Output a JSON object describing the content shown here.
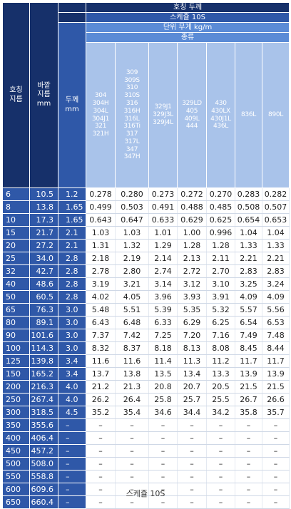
{
  "header": {
    "nominal_size_label": "호칭\n지름",
    "outer_dia_label": "바깥\n지름\nmm",
    "wall_thickness_label": "두께\nmm",
    "title_nominal_thickness": "호칭 두께",
    "schedule": "스케쥴 10S",
    "unit_weight": "단위 무게 kg/m",
    "grade_group": "종류",
    "grades": [
      "304\n304H\n304L\n304J1\n321\n321H",
      "309\n309S\n310\n310S\n316\n316H\n316L\n316Ti\n317\n317L\n347\n347H",
      "329J1\n329J3L\n329J4L",
      "329LD\n405\n409L\n444",
      "430\n430LX\n430J1L\n436L",
      "836L",
      "890L"
    ]
  },
  "rows": [
    {
      "nom": "6",
      "od": "10.5",
      "wt": "1.2",
      "w": [
        "0.278",
        "0.280",
        "0.273",
        "0.272",
        "0.270",
        "0.283",
        "0.282"
      ]
    },
    {
      "nom": "8",
      "od": "13.8",
      "wt": "1.65",
      "w": [
        "0.499",
        "0.503",
        "0.491",
        "0.488",
        "0.485",
        "0.508",
        "0.507"
      ]
    },
    {
      "nom": "10",
      "od": "17.3",
      "wt": "1.65",
      "w": [
        "0.643",
        "0.647",
        "0.633",
        "0.629",
        "0.625",
        "0.654",
        "0.653"
      ]
    },
    {
      "nom": "15",
      "od": "21.7",
      "wt": "2.1",
      "w": [
        "1.03",
        "1.03",
        "1.01",
        "1.00",
        "0.996",
        "1.04",
        "1.04"
      ]
    },
    {
      "nom": "20",
      "od": "27.2",
      "wt": "2.1",
      "w": [
        "1.31",
        "1.32",
        "1.29",
        "1.28",
        "1.28",
        "1.33",
        "1.33"
      ]
    },
    {
      "nom": "25",
      "od": "34.0",
      "wt": "2.8",
      "w": [
        "2.18",
        "2.19",
        "2.14",
        "2.13",
        "2.11",
        "2.21",
        "2.21"
      ]
    },
    {
      "nom": "32",
      "od": "42.7",
      "wt": "2.8",
      "w": [
        "2.78",
        "2.80",
        "2.74",
        "2.72",
        "2.70",
        "2.83",
        "2.83"
      ]
    },
    {
      "nom": "40",
      "od": "48.6",
      "wt": "2.8",
      "w": [
        "3.19",
        "3.21",
        "3.14",
        "3.12",
        "3.10",
        "3.25",
        "3.24"
      ]
    },
    {
      "nom": "50",
      "od": "60.5",
      "wt": "2.8",
      "w": [
        "4.02",
        "4.05",
        "3.96",
        "3.93",
        "3.91",
        "4.09",
        "4.09"
      ]
    },
    {
      "nom": "65",
      "od": "76.3",
      "wt": "3.0",
      "w": [
        "5.48",
        "5.51",
        "5.39",
        "5.35",
        "5.32",
        "5.57",
        "5.56"
      ]
    },
    {
      "nom": "80",
      "od": "89.1",
      "wt": "3.0",
      "w": [
        "6.43",
        "6.48",
        "6.33",
        "6.29",
        "6.25",
        "6.54",
        "6.53"
      ]
    },
    {
      "nom": "90",
      "od": "101.6",
      "wt": "3.0",
      "w": [
        "7.37",
        "7.42",
        "7.25",
        "7.20",
        "7.16",
        "7.49",
        "7.48"
      ]
    },
    {
      "nom": "100",
      "od": "114.3",
      "wt": "3.0",
      "w": [
        "8.32",
        "8.37",
        "8.18",
        "8.13",
        "8.08",
        "8.45",
        "8.44"
      ]
    },
    {
      "nom": "125",
      "od": "139.8",
      "wt": "3.4",
      "w": [
        "11.6",
        "11.6",
        "11.4",
        "11.3",
        "11.2",
        "11.7",
        "11.7"
      ]
    },
    {
      "nom": "150",
      "od": "165.2",
      "wt": "3.4",
      "w": [
        "13.7",
        "13.8",
        "13.5",
        "13.4",
        "13.3",
        "13.9",
        "13.9"
      ]
    },
    {
      "nom": "200",
      "od": "216.3",
      "wt": "4.0",
      "w": [
        "21.2",
        "21.3",
        "20.8",
        "20.7",
        "20.5",
        "21.5",
        "21.5"
      ]
    },
    {
      "nom": "250",
      "od": "267.4",
      "wt": "4.0",
      "w": [
        "26.2",
        "26.4",
        "25.8",
        "25.7",
        "25.5",
        "26.7",
        "26.6"
      ]
    },
    {
      "nom": "300",
      "od": "318.5",
      "wt": "4.5",
      "w": [
        "35.2",
        "35.4",
        "34.6",
        "34.4",
        "34.2",
        "35.8",
        "35.7"
      ]
    },
    {
      "nom": "350",
      "od": "355.6",
      "wt": "–",
      "w": [
        "–",
        "–",
        "–",
        "–",
        "–",
        "–",
        "–"
      ]
    },
    {
      "nom": "400",
      "od": "406.4",
      "wt": "–",
      "w": [
        "–",
        "–",
        "–",
        "–",
        "–",
        "–",
        "–"
      ]
    },
    {
      "nom": "450",
      "od": "457.2",
      "wt": "–",
      "w": [
        "–",
        "–",
        "–",
        "–",
        "–",
        "–",
        "–"
      ]
    },
    {
      "nom": "500",
      "od": "508.0",
      "wt": "–",
      "w": [
        "–",
        "–",
        "–",
        "–",
        "–",
        "–",
        "–"
      ]
    },
    {
      "nom": "550",
      "od": "558.8",
      "wt": "–",
      "w": [
        "–",
        "–",
        "–",
        "–",
        "–",
        "–",
        "–"
      ]
    },
    {
      "nom": "600",
      "od": "609.6",
      "wt": "–",
      "w": [
        "–",
        "–",
        "–",
        "–",
        "–",
        "–",
        "–"
      ]
    },
    {
      "nom": "650",
      "od": "660.4",
      "wt": "–",
      "w": [
        "–",
        "–",
        "–",
        "–",
        "–",
        "–",
        "–"
      ]
    }
  ],
  "caption": "스케쥴 10S"
}
